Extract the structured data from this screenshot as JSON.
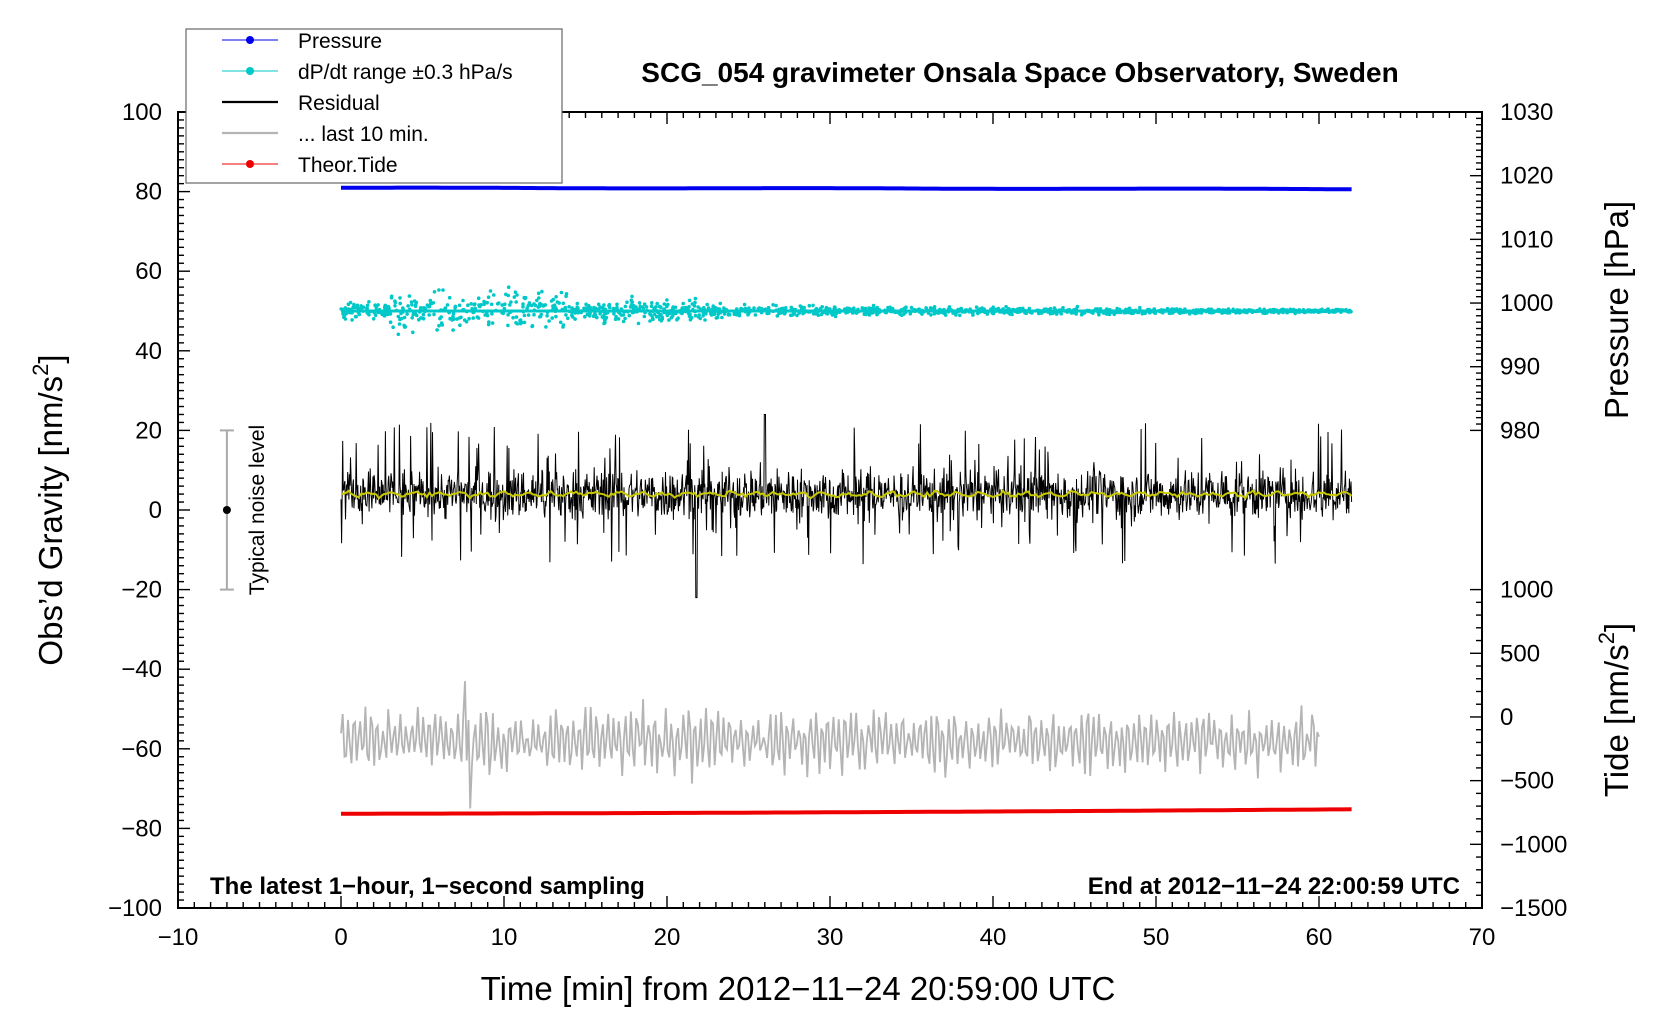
{
  "chart_data": {
    "type": "line",
    "title": "SCG_054 gravimeter Onsala Space Observatory, Sweden",
    "xlabel": "Time [min] from 2012−11−24 20:59:00 UTC",
    "ylabel": "Obs’d Gravity [nm/s²]",
    "ylabel_main": "Obs’d Gravity [nm/s",
    "ylabel_sup": "2",
    "ylabel_close": "]",
    "xlim": [
      -10,
      70
    ],
    "ylim": [
      -100,
      100
    ],
    "x_ticks": [
      -10,
      0,
      10,
      20,
      30,
      40,
      50,
      60,
      70
    ],
    "x_tick_labels": [
      "−10",
      "0",
      "10",
      "20",
      "30",
      "40",
      "50",
      "60",
      "70"
    ],
    "y_ticks": [
      -100,
      -80,
      -60,
      -40,
      -20,
      0,
      20,
      40,
      60,
      80,
      100
    ],
    "y_tick_labels": [
      "−100",
      "−80",
      "−60",
      "−40",
      "−20",
      "0",
      "20",
      "40",
      "60",
      "80",
      "100"
    ],
    "pressure_axis": {
      "label": "Pressure [hPa]",
      "range": [
        1030,
        980
      ],
      "ticks": [
        1030,
        1020,
        1010,
        1000,
        990,
        980
      ],
      "tick_labels": [
        "1030",
        "1020",
        "1010",
        "1000",
        "990",
        "980"
      ]
    },
    "tide_axis": {
      "label_main": "Tide [nm/s",
      "label_sup": "2",
      "label_close": "]",
      "range": [
        -1500,
        1000
      ],
      "ticks": [
        1000,
        500,
        0,
        -500,
        -1000,
        -1500
      ],
      "tick_labels": [
        "1000",
        "500",
        "0",
        "−500",
        "−1000",
        "−1500"
      ]
    },
    "legend": {
      "position": "top-left",
      "entries": [
        {
          "label": "Pressure",
          "color": "#0000ee",
          "marker": "dot"
        },
        {
          "label": "dP/dt range ±0.3 hPa/s",
          "color": "#00c8c8",
          "marker": "dot"
        },
        {
          "label": "Residual",
          "color": "#000000",
          "marker": "line"
        },
        {
          "label": "... last 10 min.",
          "color": "#b4b4b4",
          "marker": "line"
        },
        {
          "label": "Theor.Tide",
          "color": "#ee0000",
          "marker": "dot"
        }
      ]
    },
    "series": [
      {
        "name": "Pressure",
        "color": "#0000ee",
        "x_range": [
          0,
          62
        ],
        "pressure_start": 1018.1,
        "pressure_end": 1017.9
      },
      {
        "name": "dP/dt",
        "color": "#00c8c8",
        "x_range": [
          0,
          62
        ],
        "level": 50,
        "spread_early": 6,
        "spread_late": 1.2
      },
      {
        "name": "Residual",
        "color": "#000000",
        "x_range": [
          0,
          62
        ],
        "level": 4,
        "typical_amplitude": 8,
        "peak_max": 24,
        "peak_min": -22
      },
      {
        "name": "Residual smoothed",
        "color": "#c8c800",
        "x_range": [
          0,
          62
        ],
        "level": 4
      },
      {
        "name": "... last 10 min.",
        "color": "#b4b4b4",
        "x_range": [
          0,
          60
        ],
        "level": -58,
        "amplitude": 8,
        "peak_max": -43,
        "peak_min": -75
      },
      {
        "name": "Theor.Tide",
        "color": "#ee0000",
        "x_range": [
          0,
          62
        ],
        "gravity_start": -76.3,
        "gravity_end": -75.2
      }
    ],
    "noise_bar": {
      "label": "Typical noise level",
      "x": -7,
      "center": 0,
      "low": -20,
      "high": 20
    },
    "annotations": {
      "left": "The latest 1−hour, 1−second sampling",
      "right": "End at 2012−11−24 22:00:59 UTC"
    }
  }
}
